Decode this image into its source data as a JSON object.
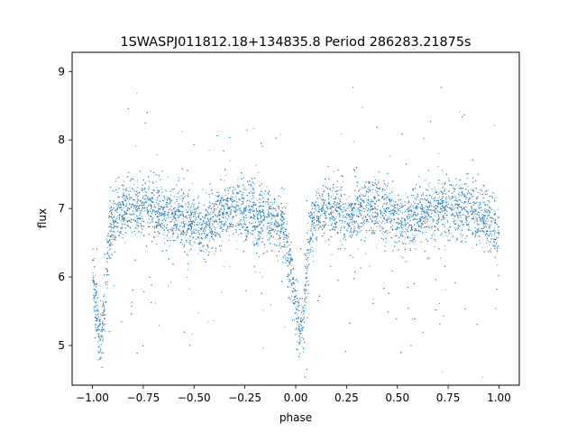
{
  "chart_data": {
    "type": "scatter",
    "title": "1SWASPJ011812.18+134835.8 Period 286283.21875s",
    "xlabel": "phase",
    "ylabel": "flux",
    "xlim": [
      -1.1,
      1.1
    ],
    "ylim": [
      4.42,
      9.28
    ],
    "xticks": [
      -1.0,
      -0.75,
      -0.5,
      -0.25,
      0.0,
      0.25,
      0.5,
      0.75,
      1.0
    ],
    "xtick_labels": [
      "−1.00",
      "−0.75",
      "−0.50",
      "−0.25",
      "0.00",
      "0.25",
      "0.50",
      "0.75",
      "1.00"
    ],
    "yticks": [
      5,
      6,
      7,
      8,
      9
    ],
    "ytick_labels": [
      "5",
      "6",
      "7",
      "8",
      "9"
    ],
    "grid": false,
    "marker_color": "#1f77b4",
    "series": [
      {
        "name": "",
        "profile_x": [
          -1.0,
          -0.99,
          -0.98,
          -0.97,
          -0.96,
          -0.95,
          -0.94,
          -0.93,
          -0.92,
          -0.91,
          -0.9,
          -0.85,
          -0.8,
          -0.75,
          -0.7,
          -0.65,
          -0.6,
          -0.55,
          -0.5,
          -0.45,
          -0.4,
          -0.35,
          -0.3,
          -0.25,
          -0.2,
          -0.15,
          -0.1,
          -0.06,
          -0.04,
          -0.02,
          0.0,
          0.02,
          0.04,
          0.06,
          0.08,
          0.1,
          0.15,
          0.2,
          0.25,
          0.3,
          0.35,
          0.4,
          0.45,
          0.5,
          0.55,
          0.6,
          0.65,
          0.7,
          0.75,
          0.8,
          0.85,
          0.9,
          0.95,
          1.0
        ],
        "profile_y": [
          6.1,
          5.8,
          5.5,
          5.2,
          5.05,
          5.2,
          5.6,
          6.1,
          6.5,
          6.75,
          6.85,
          6.95,
          7.0,
          7.05,
          7.0,
          6.95,
          6.9,
          6.85,
          6.75,
          6.7,
          6.8,
          6.95,
          7.0,
          6.95,
          6.9,
          6.85,
          6.8,
          6.7,
          6.4,
          6.0,
          5.6,
          5.2,
          5.5,
          6.3,
          6.75,
          6.85,
          6.95,
          6.95,
          6.9,
          6.95,
          7.05,
          7.0,
          6.95,
          6.85,
          6.8,
          6.9,
          6.95,
          7.0,
          7.05,
          7.0,
          6.95,
          6.9,
          6.8,
          6.6
        ],
        "scatter_sigma": 0.22,
        "point_count": 9000
      }
    ]
  }
}
